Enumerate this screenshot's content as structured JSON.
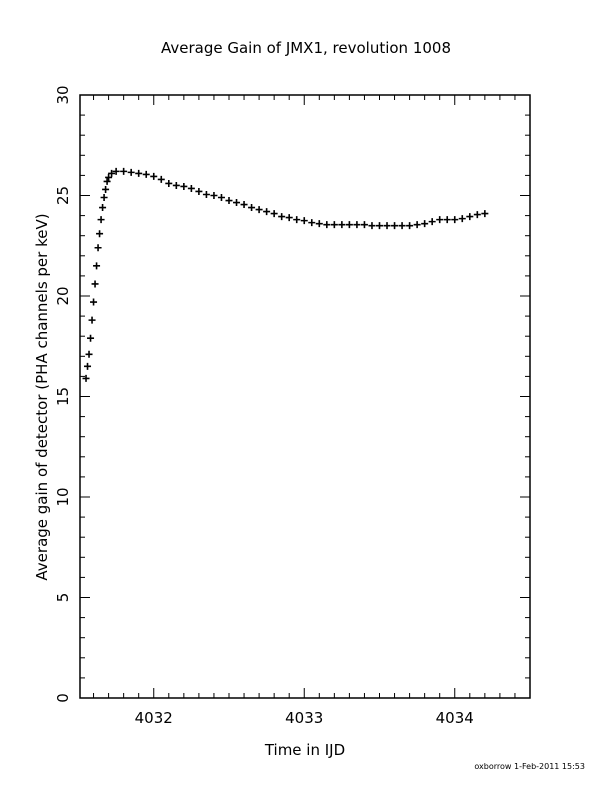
{
  "chart_data": {
    "type": "scatter",
    "title": "Average Gain of JMX1, revolution 1008",
    "xlabel": "Time in IJD",
    "ylabel": "Average gain of detector (PHA channels per keV)",
    "xlim": [
      4031.51,
      4034.5
    ],
    "ylim": [
      0,
      30
    ],
    "xticks": [
      4032,
      4033,
      4034
    ],
    "yticks": [
      0,
      5,
      10,
      15,
      20,
      25,
      30
    ],
    "marker": "plus",
    "grid": false,
    "color": "#000000",
    "footer": "oxborrow   1-Feb-2011 15:53",
    "points": [
      [
        4031.55,
        15.9
      ],
      [
        4031.56,
        16.5
      ],
      [
        4031.57,
        17.1
      ],
      [
        4031.58,
        17.9
      ],
      [
        4031.59,
        18.8
      ],
      [
        4031.6,
        19.7
      ],
      [
        4031.61,
        20.6
      ],
      [
        4031.62,
        21.5
      ],
      [
        4031.63,
        22.4
      ],
      [
        4031.64,
        23.1
      ],
      [
        4031.65,
        23.8
      ],
      [
        4031.66,
        24.4
      ],
      [
        4031.67,
        24.9
      ],
      [
        4031.68,
        25.3
      ],
      [
        4031.69,
        25.7
      ],
      [
        4031.7,
        25.9
      ],
      [
        4031.72,
        26.1
      ],
      [
        4031.75,
        26.2
      ],
      [
        4031.8,
        26.2
      ],
      [
        4031.85,
        26.15
      ],
      [
        4031.9,
        26.1
      ],
      [
        4031.95,
        26.05
      ],
      [
        4032.0,
        25.95
      ],
      [
        4032.05,
        25.8
      ],
      [
        4032.1,
        25.6
      ],
      [
        4032.15,
        25.5
      ],
      [
        4032.2,
        25.45
      ],
      [
        4032.25,
        25.35
      ],
      [
        4032.3,
        25.2
      ],
      [
        4032.35,
        25.05
      ],
      [
        4032.4,
        25.0
      ],
      [
        4032.45,
        24.9
      ],
      [
        4032.5,
        24.75
      ],
      [
        4032.55,
        24.65
      ],
      [
        4032.6,
        24.55
      ],
      [
        4032.65,
        24.4
      ],
      [
        4032.7,
        24.3
      ],
      [
        4032.75,
        24.2
      ],
      [
        4032.8,
        24.1
      ],
      [
        4032.85,
        23.95
      ],
      [
        4032.9,
        23.9
      ],
      [
        4032.95,
        23.8
      ],
      [
        4033.0,
        23.75
      ],
      [
        4033.05,
        23.65
      ],
      [
        4033.1,
        23.6
      ],
      [
        4033.15,
        23.55
      ],
      [
        4033.2,
        23.55
      ],
      [
        4033.25,
        23.55
      ],
      [
        4033.3,
        23.55
      ],
      [
        4033.35,
        23.55
      ],
      [
        4033.4,
        23.55
      ],
      [
        4033.45,
        23.5
      ],
      [
        4033.5,
        23.5
      ],
      [
        4033.55,
        23.5
      ],
      [
        4033.6,
        23.5
      ],
      [
        4033.65,
        23.5
      ],
      [
        4033.7,
        23.5
      ],
      [
        4033.75,
        23.55
      ],
      [
        4033.8,
        23.6
      ],
      [
        4033.85,
        23.7
      ],
      [
        4033.9,
        23.8
      ],
      [
        4033.95,
        23.8
      ],
      [
        4034.0,
        23.8
      ],
      [
        4034.05,
        23.85
      ],
      [
        4034.1,
        23.95
      ],
      [
        4034.15,
        24.05
      ],
      [
        4034.2,
        24.1
      ]
    ]
  }
}
